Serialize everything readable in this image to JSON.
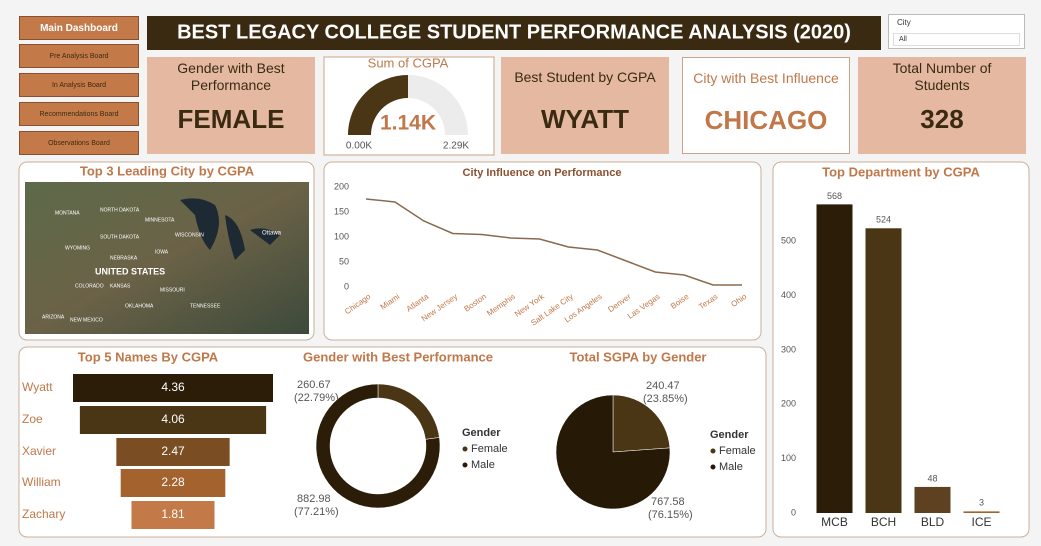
{
  "nav": [
    "Main Dashboard",
    "Pre Analysis Board",
    "In Analysis Board",
    "Recommendations Board",
    "Observations Board"
  ],
  "header": {
    "title": "BEST LEGACY COLLEGE STUDENT PERFORMANCE ANALYSIS (2020)"
  },
  "slicer": {
    "label": "City",
    "value": "All"
  },
  "cards": [
    {
      "title": "Gender with Best Performance",
      "value": "FEMALE"
    },
    {
      "title": "Best Student by CGPA",
      "value": "WYATT"
    },
    {
      "title": "City with Best Influence",
      "value": "CHICAGO"
    },
    {
      "title": "Total Number of Students",
      "value": 328
    }
  ],
  "map": {
    "title": "Top 3 Leading City by CGPA",
    "labels": [
      "MONTANA",
      "NORTH DAKOTA",
      "MINNESOTA",
      "SOUTH DAKOTA",
      "WISCONSIN",
      "WYOMING",
      "IOWA",
      "NEBRASKA",
      "UNITED STATES",
      "COLORADO",
      "KANSAS",
      "MISSOURI",
      "OKLAHOMA",
      "ARIZONA",
      "NEW MEXICO",
      "TENNESSEE",
      "Ottawa"
    ]
  },
  "chart_data": [
    {
      "type": "gauge",
      "title": "Sum of CGPA",
      "values": [
        1143.65
      ],
      "value_labels": [
        "1.14K"
      ],
      "ylim": [
        0,
        2287.3
      ],
      "yticks": [
        {
          "value": 0,
          "label": "0.00K"
        },
        {
          "value": 2287.3,
          "label": "2.29K"
        }
      ],
      "color": "#4a3515"
    },
    {
      "type": "line",
      "title": "City Influence on Performance",
      "categories": [
        "Chicago",
        "Miami",
        "Atlanta",
        "New Jersey",
        "Boston",
        "Memphis",
        "New York",
        "Salt Lake City",
        "Los Angeles",
        "Denver",
        "Las Vegas",
        "Boise",
        "Texas",
        "Ohio"
      ],
      "values": [
        176,
        170,
        132,
        107,
        105,
        98,
        96,
        80,
        74,
        52,
        30,
        24,
        4,
        4
      ],
      "ylim": [
        0,
        200
      ],
      "yticks": [
        0,
        50,
        100,
        150,
        200
      ],
      "color": "#8a6a4e"
    },
    {
      "type": "bar",
      "title": "Top Department by CGPA",
      "categories": [
        "MCB",
        "BCH",
        "BLD",
        "ICE"
      ],
      "values": [
        568,
        524,
        48,
        3
      ],
      "ylim": [
        0,
        600
      ],
      "yticks": [
        0,
        100,
        200,
        300,
        400,
        500
      ],
      "colors": [
        "#2b1d08",
        "#4a3515",
        "#5e4120",
        "#a4622f"
      ]
    },
    {
      "type": "funnel",
      "title": "Top 5 Names By CGPA",
      "categories": [
        "Wyatt",
        "Zoe",
        "Xavier",
        "William",
        "Zachary"
      ],
      "values": [
        4.36,
        4.06,
        2.47,
        2.28,
        1.81
      ],
      "colors": [
        "#2b1d08",
        "#4a3515",
        "#7a4e22",
        "#a4622f",
        "#c47a48"
      ]
    },
    {
      "type": "donut",
      "title": "Gender with Best Performance",
      "categories": [
        "Female",
        "Male"
      ],
      "values": [
        260.67,
        882.98
      ],
      "percent_labels": [
        "(22.79%)",
        "(77.21%)"
      ],
      "colors": [
        "#4a3515",
        "#2b1d08"
      ],
      "legend_title": "Gender"
    },
    {
      "type": "pie",
      "title": "Total SGPA by Gender",
      "categories": [
        "Female",
        "Male"
      ],
      "values": [
        240.47,
        767.58
      ],
      "percent_labels": [
        "(23.85%)",
        "(76.15%)"
      ],
      "colors": [
        "#4a3515",
        "#261a07"
      ],
      "legend_title": "Gender"
    }
  ]
}
